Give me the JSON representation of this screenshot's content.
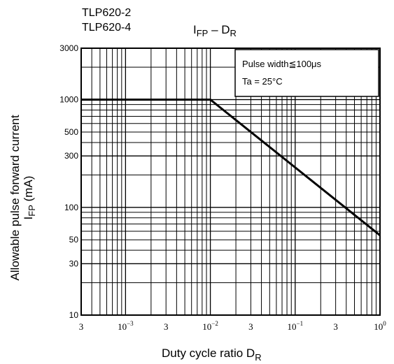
{
  "chart_data": {
    "type": "line",
    "models": [
      "TLP620-2",
      "TLP620-4"
    ],
    "title": {
      "main": "I",
      "sub": "FP",
      "dash": " – D",
      "sub2": "R"
    },
    "annotation": {
      "line1": "Pulse width≦100μs",
      "line2": "Ta = 25°C"
    },
    "xlabel": {
      "text": "Duty cycle ratio   D",
      "sub": "R"
    },
    "ylabel": {
      "line1": "Allowable pulse forward current",
      "line2_main": "I",
      "line2_sub": "FP",
      "line2_unit": " (mA)"
    },
    "x_scale": "log",
    "y_scale": "log",
    "xlim": [
      0.0003,
      1
    ],
    "ylim": [
      10,
      3000
    ],
    "y_ticks": [
      {
        "value": 3000,
        "label": "3000"
      },
      {
        "value": 1000,
        "label": "1000"
      },
      {
        "value": 500,
        "label": "500"
      },
      {
        "value": 300,
        "label": "300"
      },
      {
        "value": 100,
        "label": "100"
      },
      {
        "value": 50,
        "label": "50"
      },
      {
        "value": 30,
        "label": "30"
      },
      {
        "value": 10,
        "label": "10"
      }
    ],
    "x_ticks": [
      {
        "value": 0.0003,
        "base": "3",
        "exp": ""
      },
      {
        "value": 0.001,
        "base": "10",
        "exp": "−3"
      },
      {
        "value": 0.003,
        "base": "3",
        "exp": ""
      },
      {
        "value": 0.01,
        "base": "10",
        "exp": "−2"
      },
      {
        "value": 0.03,
        "base": "3",
        "exp": ""
      },
      {
        "value": 0.1,
        "base": "10",
        "exp": "−1"
      },
      {
        "value": 0.3,
        "base": "3",
        "exp": ""
      },
      {
        "value": 1,
        "base": "10",
        "exp": "0"
      }
    ],
    "series": [
      {
        "x": [
          0.0003,
          0.01,
          1
        ],
        "y": [
          1000,
          1000,
          55
        ]
      }
    ],
    "grid": true
  }
}
